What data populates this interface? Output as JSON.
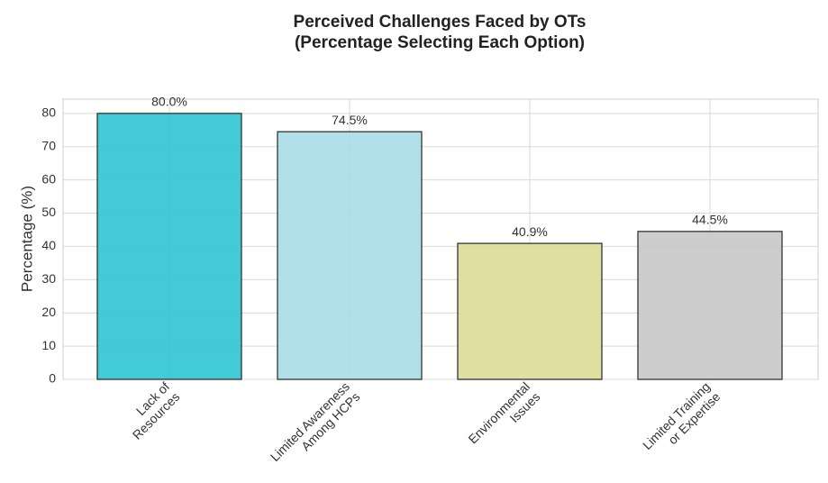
{
  "chart_data": {
    "type": "bar",
    "title": [
      "Perceived Challenges Faced by OTs",
      "(Percentage Selecting Each Option)"
    ],
    "ylabel": "Percentage (%)",
    "categories": [
      [
        "Lack of",
        "Resources"
      ],
      [
        "Limited Awareness",
        "Among HCPs"
      ],
      [
        "Environmental",
        "Issues"
      ],
      [
        "Limited Training",
        "or Expertise"
      ]
    ],
    "values": [
      80.0,
      74.5,
      40.9,
      44.5
    ],
    "value_labels": [
      "80.0%",
      "74.5%",
      "40.9%",
      "44.5%"
    ],
    "colors": [
      "#2ec4d2",
      "#a8dde7",
      "#dcdc96",
      "#c8c8c8"
    ],
    "ylim": [
      0,
      84.3
    ],
    "yticks": [
      0,
      10,
      20,
      30,
      40,
      50,
      60,
      70,
      80
    ],
    "grid": true
  }
}
